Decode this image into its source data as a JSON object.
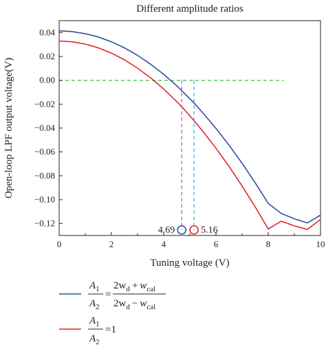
{
  "chart_data": {
    "type": "line",
    "title": "Different amplitude ratios",
    "xlabel": "Tuning voltage (V)",
    "ylabel": "Open-loop LPF output voltage(V)",
    "xlim": [
      0,
      10
    ],
    "ylim": [
      -0.13,
      0.05
    ],
    "x_ticks": [
      0,
      2,
      4,
      6,
      8,
      10
    ],
    "x_tick_labels": [
      "0",
      "2",
      "4",
      "6",
      "8",
      "10"
    ],
    "y_ticks": [
      0.04,
      0.02,
      0.0,
      -0.02,
      -0.04,
      -0.06,
      -0.08,
      -0.1,
      -0.12
    ],
    "y_tick_labels": [
      "0.04",
      "0.02",
      "0.00",
      "−0.02",
      "−0.04",
      "−0.06",
      "−0.08",
      "−0.10",
      "−0.12"
    ],
    "grid": false,
    "legend_position": "bottom",
    "series": [
      {
        "color": "#2e4fa3",
        "x": [
          0,
          0.5,
          1,
          1.5,
          2,
          2.5,
          3,
          3.5,
          4,
          4.5,
          5,
          5.16,
          5.5,
          6,
          6.5,
          7,
          7.5,
          8,
          8.5,
          9,
          9.5,
          10
        ],
        "y": [
          0.0415,
          0.0408,
          0.0391,
          0.0363,
          0.0323,
          0.0272,
          0.0209,
          0.0135,
          0.005,
          -0.0046,
          -0.0154,
          -0.019,
          -0.0273,
          -0.0403,
          -0.0543,
          -0.0695,
          -0.0858,
          -0.1031,
          -0.1116,
          -0.116,
          -0.1195,
          -0.113
        ]
      },
      {
        "color": "#e0242b",
        "x": [
          0,
          0.5,
          1,
          1.5,
          2,
          2.5,
          3,
          3.5,
          4,
          4.5,
          4.69,
          5,
          5.5,
          6,
          6.5,
          7,
          7.5,
          8,
          8.5,
          9,
          9.5,
          10
        ],
        "y": [
          0.033,
          0.0323,
          0.0304,
          0.0272,
          0.0228,
          0.0171,
          0.0102,
          0.0021,
          -0.0073,
          -0.0178,
          -0.0221,
          -0.0297,
          -0.0427,
          -0.0569,
          -0.0721,
          -0.0886,
          -0.106,
          -0.1246,
          -0.118,
          -0.122,
          -0.125,
          -0.1165
        ]
      }
    ],
    "reference_line": {
      "y": 0.0,
      "x_end": 8.6,
      "color": "#2bb52b"
    },
    "crossings": [
      {
        "x": 4.69,
        "label": "4.69",
        "line_color": "#cc44cc",
        "marker_color": "#2e4fa3"
      },
      {
        "x": 5.16,
        "label": "5.16",
        "line_color": "#33aadd",
        "marker_color": "#e0242b"
      }
    ],
    "legend": [
      {
        "color": "#2e4fa3",
        "lhs_num": "A",
        "lhs_num_sub": "1",
        "lhs_den": "A",
        "lhs_den_sub": "2",
        "eq": "=",
        "num_a": "2w",
        "num_a_sub": "d",
        "num_op": "+",
        "num_b": "w",
        "num_b_sub": "cal",
        "den_a": "2w",
        "den_a_sub": "d",
        "den_op": "−",
        "den_b": "w",
        "den_b_sub": "cal"
      },
      {
        "color": "#e0242b",
        "lhs_num": "A",
        "lhs_num_sub": "1",
        "lhs_den": "A",
        "lhs_den_sub": "2",
        "eq": "=",
        "rhs": "1"
      }
    ]
  }
}
